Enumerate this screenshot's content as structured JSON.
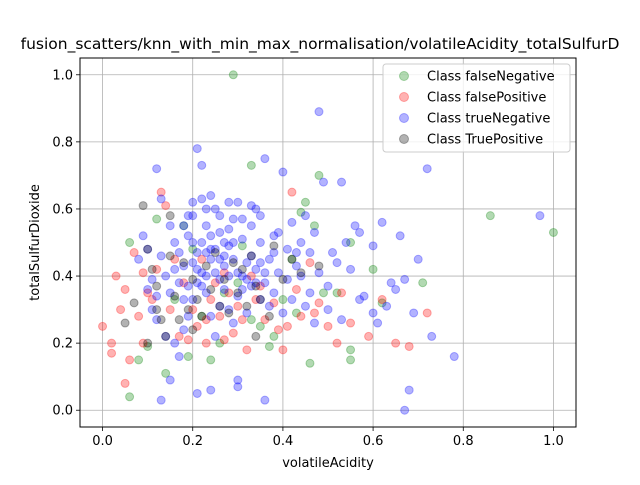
{
  "chart_data": {
    "type": "scatter",
    "title": "fusion_scatters/knn_with_min_max_normalisation/volatileAcidity_totalSulfurD",
    "xlabel": "volatileAcidity",
    "ylabel": "totalSulfurDioxide",
    "xlim": [
      -0.05,
      1.05
    ],
    "ylim": [
      -0.05,
      1.05
    ],
    "xticks": [
      "0.0",
      "0.2",
      "0.4",
      "0.6",
      "0.8",
      "1.0"
    ],
    "yticks": [
      "0.0",
      "0.2",
      "0.4",
      "0.6",
      "0.8",
      "1.0"
    ],
    "grid": true,
    "legend_position": "top-right",
    "series": [
      {
        "name": "Class falseNegative",
        "color": "#008000",
        "points": [
          [
            0.29,
            1.0
          ],
          [
            0.33,
            0.73
          ],
          [
            0.48,
            0.7
          ],
          [
            0.44,
            0.59
          ],
          [
            0.45,
            0.62
          ],
          [
            0.47,
            0.55
          ],
          [
            0.55,
            0.5
          ],
          [
            0.06,
            0.04
          ],
          [
            0.08,
            0.15
          ],
          [
            0.14,
            0.11
          ],
          [
            0.1,
            0.19
          ],
          [
            0.16,
            0.33
          ],
          [
            0.22,
            0.28
          ],
          [
            0.26,
            0.2
          ],
          [
            0.3,
            0.38
          ],
          [
            0.33,
            0.27
          ],
          [
            0.37,
            0.19
          ],
          [
            0.4,
            0.33
          ],
          [
            0.43,
            0.29
          ],
          [
            0.46,
            0.14
          ],
          [
            0.49,
            0.35
          ],
          [
            0.52,
            0.35
          ],
          [
            0.55,
            0.15
          ],
          [
            0.55,
            0.18
          ],
          [
            0.6,
            0.42
          ],
          [
            0.62,
            0.32
          ],
          [
            0.71,
            0.38
          ],
          [
            0.86,
            0.58
          ],
          [
            1.0,
            0.53
          ],
          [
            0.18,
            0.55
          ],
          [
            0.2,
            0.48
          ],
          [
            0.12,
            0.57
          ],
          [
            0.35,
            0.25
          ],
          [
            0.38,
            0.22
          ],
          [
            0.24,
            0.15
          ],
          [
            0.19,
            0.16
          ],
          [
            0.06,
            0.5
          ],
          [
            0.42,
            0.45
          ],
          [
            0.31,
            0.49
          ],
          [
            0.27,
            0.35
          ]
        ]
      },
      {
        "name": "Class falsePositive",
        "color": "#ff0000",
        "points": [
          [
            0.0,
            0.25
          ],
          [
            0.02,
            0.2
          ],
          [
            0.02,
            0.17
          ],
          [
            0.04,
            0.3
          ],
          [
            0.05,
            0.08
          ],
          [
            0.06,
            0.15
          ],
          [
            0.08,
            0.28
          ],
          [
            0.09,
            0.2
          ],
          [
            0.1,
            0.35
          ],
          [
            0.12,
            0.42
          ],
          [
            0.13,
            0.65
          ],
          [
            0.14,
            0.61
          ],
          [
            0.15,
            0.3
          ],
          [
            0.17,
            0.22
          ],
          [
            0.18,
            0.38
          ],
          [
            0.2,
            0.3
          ],
          [
            0.21,
            0.25
          ],
          [
            0.22,
            0.45
          ],
          [
            0.23,
            0.2
          ],
          [
            0.24,
            0.33
          ],
          [
            0.25,
            0.38
          ],
          [
            0.26,
            0.28
          ],
          [
            0.27,
            0.41
          ],
          [
            0.28,
            0.35
          ],
          [
            0.29,
            0.23
          ],
          [
            0.3,
            0.31
          ],
          [
            0.31,
            0.27
          ],
          [
            0.32,
            0.18
          ],
          [
            0.33,
            0.4
          ],
          [
            0.34,
            0.33
          ],
          [
            0.36,
            0.27
          ],
          [
            0.38,
            0.32
          ],
          [
            0.4,
            0.18
          ],
          [
            0.41,
            0.25
          ],
          [
            0.42,
            0.65
          ],
          [
            0.44,
            0.28
          ],
          [
            0.46,
            0.44
          ],
          [
            0.48,
            0.32
          ],
          [
            0.5,
            0.25
          ],
          [
            0.53,
            0.35
          ],
          [
            0.55,
            0.26
          ],
          [
            0.59,
            0.22
          ],
          [
            0.65,
            0.2
          ],
          [
            0.68,
            0.19
          ],
          [
            0.72,
            0.29
          ],
          [
            0.03,
            0.4
          ],
          [
            0.05,
            0.36
          ],
          [
            0.07,
            0.47
          ],
          [
            0.09,
            0.41
          ],
          [
            0.11,
            0.33
          ],
          [
            0.16,
            0.45
          ],
          [
            0.19,
            0.21
          ],
          [
            0.23,
            0.27
          ],
          [
            0.27,
            0.21
          ],
          [
            0.35,
            0.37
          ],
          [
            0.39,
            0.24
          ],
          [
            0.43,
            0.36
          ],
          [
            0.47,
            0.29
          ],
          [
            0.52,
            0.2
          ],
          [
            0.62,
            0.33
          ]
        ]
      },
      {
        "name": "Class trueNegative",
        "color": "#0000ff",
        "points": [
          [
            0.12,
            0.72
          ],
          [
            0.13,
            0.63
          ],
          [
            0.15,
            0.55
          ],
          [
            0.16,
            0.5
          ],
          [
            0.17,
            0.47
          ],
          [
            0.18,
            0.43
          ],
          [
            0.19,
            0.52
          ],
          [
            0.2,
            0.58
          ],
          [
            0.21,
            0.78
          ],
          [
            0.22,
            0.73
          ],
          [
            0.22,
            0.63
          ],
          [
            0.23,
            0.55
          ],
          [
            0.24,
            0.48
          ],
          [
            0.25,
            0.6
          ],
          [
            0.26,
            0.53
          ],
          [
            0.27,
            0.46
          ],
          [
            0.28,
            0.4
          ],
          [
            0.29,
            0.57
          ],
          [
            0.3,
            0.62
          ],
          [
            0.31,
            0.51
          ],
          [
            0.32,
            0.44
          ],
          [
            0.33,
            0.55
          ],
          [
            0.34,
            0.6
          ],
          [
            0.35,
            0.5
          ],
          [
            0.36,
            0.75
          ],
          [
            0.37,
            0.45
          ],
          [
            0.38,
            0.52
          ],
          [
            0.39,
            0.41
          ],
          [
            0.4,
            0.71
          ],
          [
            0.41,
            0.48
          ],
          [
            0.42,
            0.56
          ],
          [
            0.43,
            0.43
          ],
          [
            0.44,
            0.5
          ],
          [
            0.45,
            0.58
          ],
          [
            0.46,
            0.47
          ],
          [
            0.47,
            0.53
          ],
          [
            0.48,
            0.89
          ],
          [
            0.49,
            0.68
          ],
          [
            0.5,
            0.37
          ],
          [
            0.52,
            0.44
          ],
          [
            0.53,
            0.68
          ],
          [
            0.54,
            0.5
          ],
          [
            0.56,
            0.55
          ],
          [
            0.57,
            0.53
          ],
          [
            0.6,
            0.49
          ],
          [
            0.62,
            0.56
          ],
          [
            0.64,
            0.38
          ],
          [
            0.66,
            0.52
          ],
          [
            0.67,
            0.39
          ],
          [
            0.7,
            0.45
          ],
          [
            0.72,
            0.72
          ],
          [
            0.73,
            0.22
          ],
          [
            0.78,
            0.16
          ],
          [
            0.97,
            0.58
          ],
          [
            0.67,
            0.0
          ],
          [
            0.68,
            0.06
          ],
          [
            0.36,
            0.03
          ],
          [
            0.13,
            0.03
          ],
          [
            0.21,
            0.05
          ],
          [
            0.24,
            0.06
          ],
          [
            0.3,
            0.07
          ],
          [
            0.3,
            0.09
          ],
          [
            0.15,
            0.09
          ],
          [
            0.1,
            0.36
          ],
          [
            0.11,
            0.3
          ],
          [
            0.12,
            0.27
          ],
          [
            0.14,
            0.22
          ],
          [
            0.16,
            0.2
          ],
          [
            0.17,
            0.16
          ],
          [
            0.18,
            0.24
          ],
          [
            0.19,
            0.28
          ],
          [
            0.2,
            0.33
          ],
          [
            0.21,
            0.38
          ],
          [
            0.22,
            0.41
          ],
          [
            0.23,
            0.35
          ],
          [
            0.24,
            0.28
          ],
          [
            0.25,
            0.22
          ],
          [
            0.26,
            0.31
          ],
          [
            0.27,
            0.36
          ],
          [
            0.28,
            0.3
          ],
          [
            0.29,
            0.26
          ],
          [
            0.3,
            0.34
          ],
          [
            0.31,
            0.4
          ],
          [
            0.32,
            0.29
          ],
          [
            0.33,
            0.37
          ],
          [
            0.34,
            0.42
          ],
          [
            0.35,
            0.33
          ],
          [
            0.36,
            0.38
          ],
          [
            0.37,
            0.31
          ],
          [
            0.38,
            0.35
          ],
          [
            0.4,
            0.29
          ],
          [
            0.42,
            0.33
          ],
          [
            0.45,
            0.31
          ],
          [
            0.47,
            0.26
          ],
          [
            0.5,
            0.3
          ],
          [
            0.53,
            0.27
          ],
          [
            0.57,
            0.33
          ],
          [
            0.6,
            0.29
          ],
          [
            0.61,
            0.26
          ],
          [
            0.63,
            0.31
          ],
          [
            0.65,
            0.36
          ],
          [
            0.69,
            0.29
          ],
          [
            0.08,
            0.45
          ],
          [
            0.09,
            0.52
          ],
          [
            0.1,
            0.48
          ],
          [
            0.11,
            0.39
          ],
          [
            0.12,
            0.34
          ],
          [
            0.13,
            0.46
          ],
          [
            0.14,
            0.4
          ],
          [
            0.15,
            0.35
          ],
          [
            0.16,
            0.42
          ],
          [
            0.17,
            0.38
          ],
          [
            0.18,
            0.33
          ],
          [
            0.19,
            0.37
          ],
          [
            0.2,
            0.44
          ],
          [
            0.21,
            0.42
          ],
          [
            0.22,
            0.37
          ],
          [
            0.23,
            0.4
          ],
          [
            0.24,
            0.45
          ],
          [
            0.25,
            0.41
          ],
          [
            0.26,
            0.39
          ],
          [
            0.27,
            0.43
          ],
          [
            0.28,
            0.49
          ],
          [
            0.29,
            0.45
          ],
          [
            0.3,
            0.41
          ],
          [
            0.31,
            0.36
          ],
          [
            0.32,
            0.39
          ],
          [
            0.33,
            0.46
          ],
          [
            0.34,
            0.38
          ],
          [
            0.35,
            0.44
          ],
          [
            0.36,
            0.41
          ],
          [
            0.38,
            0.47
          ],
          [
            0.39,
            0.53
          ],
          [
            0.41,
            0.39
          ],
          [
            0.43,
            0.47
          ],
          [
            0.44,
            0.4
          ],
          [
            0.46,
            0.35
          ],
          [
            0.48,
            0.41
          ],
          [
            0.51,
            0.47
          ],
          [
            0.55,
            0.42
          ],
          [
            0.58,
            0.34
          ],
          [
            0.2,
            0.5
          ],
          [
            0.21,
            0.47
          ],
          [
            0.22,
            0.5
          ],
          [
            0.23,
            0.47
          ],
          [
            0.24,
            0.52
          ],
          [
            0.25,
            0.48
          ],
          [
            0.26,
            0.45
          ],
          [
            0.27,
            0.5
          ],
          [
            0.28,
            0.54
          ],
          [
            0.29,
            0.5
          ],
          [
            0.18,
            0.55
          ],
          [
            0.19,
            0.58
          ],
          [
            0.2,
            0.62
          ],
          [
            0.23,
            0.6
          ],
          [
            0.24,
            0.64
          ],
          [
            0.26,
            0.58
          ],
          [
            0.28,
            0.62
          ],
          [
            0.31,
            0.57
          ],
          [
            0.33,
            0.61
          ],
          [
            0.35,
            0.58
          ]
        ]
      },
      {
        "name": "Class TruePositive",
        "color": "#000000",
        "points": [
          [
            0.09,
            0.61
          ],
          [
            0.1,
            0.48
          ],
          [
            0.11,
            0.42
          ],
          [
            0.12,
            0.37
          ],
          [
            0.13,
            0.27
          ],
          [
            0.14,
            0.22
          ],
          [
            0.15,
            0.46
          ],
          [
            0.16,
            0.34
          ],
          [
            0.17,
            0.27
          ],
          [
            0.18,
            0.44
          ],
          [
            0.19,
            0.3
          ],
          [
            0.2,
            0.39
          ],
          [
            0.21,
            0.33
          ],
          [
            0.22,
            0.28
          ],
          [
            0.23,
            0.43
          ],
          [
            0.24,
            0.36
          ],
          [
            0.25,
            0.47
          ],
          [
            0.26,
            0.31
          ],
          [
            0.27,
            0.39
          ],
          [
            0.28,
            0.29
          ],
          [
            0.29,
            0.44
          ],
          [
            0.3,
            0.35
          ],
          [
            0.31,
            0.42
          ],
          [
            0.32,
            0.31
          ],
          [
            0.33,
            0.46
          ],
          [
            0.34,
            0.37
          ],
          [
            0.35,
            0.33
          ],
          [
            0.37,
            0.28
          ],
          [
            0.38,
            0.49
          ],
          [
            0.4,
            0.39
          ],
          [
            0.42,
            0.45
          ],
          [
            0.44,
            0.41
          ],
          [
            0.48,
            0.43
          ],
          [
            0.1,
            0.2
          ],
          [
            0.15,
            0.58
          ],
          [
            0.05,
            0.26
          ],
          [
            0.07,
            0.32
          ],
          [
            0.12,
            0.3
          ],
          [
            0.2,
            0.24
          ],
          [
            0.34,
            0.22
          ]
        ]
      }
    ]
  }
}
